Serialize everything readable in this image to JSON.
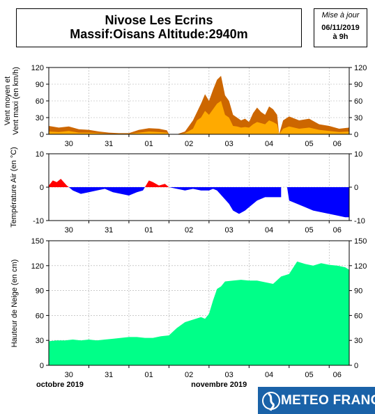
{
  "header": {
    "title_line1": "Nivose Les Ecrins",
    "title_line2": "Massif:Oisans Altitude:2940m",
    "update_label": "Mise à jour",
    "update_date": "06/11/2019",
    "update_time": "à 9h"
  },
  "logo": {
    "text": "METEO FRANCE"
  },
  "colors": {
    "wind_max": "#cc6600",
    "wind_mean": "#ffaa00",
    "temp_pos": "#ff0000",
    "temp_neg": "#0000ff",
    "snow": "#00ff88",
    "grid": "#aaaaaa",
    "logo_bg": "#1a62a8"
  },
  "chart_data": [
    {
      "type": "area",
      "ylabel": [
        "Vent moyen et",
        "Vent maxi (en km/h)"
      ],
      "ylim": [
        0,
        120
      ],
      "yticks": [
        0,
        30,
        60,
        90,
        120
      ],
      "day_labels": [
        "30",
        "31",
        "01",
        "02",
        "03",
        "04",
        "05",
        "06"
      ],
      "day_x": [
        0.5,
        1.5,
        2.5,
        3.5,
        4.5,
        5.5,
        6.5,
        7.2
      ],
      "grid": true,
      "series": [
        {
          "x": [
            0,
            0.25,
            0.5,
            0.75,
            1,
            1.25,
            1.5,
            1.75,
            2,
            2.25,
            2.5,
            2.75,
            2.95,
            3.0,
            3.2,
            3.4,
            3.6,
            3.7,
            3.8,
            3.9,
            4.0,
            4.1,
            4.2,
            4.3,
            4.4,
            4.5,
            4.6,
            4.7,
            4.8,
            4.9,
            5.0,
            5.1,
            5.2,
            5.3,
            5.4,
            5.5,
            5.6,
            5.7,
            5.75,
            5.85,
            6.0,
            6.25,
            6.5,
            6.75,
            7.0,
            7.25,
            7.5
          ],
          "values": [
            15,
            12,
            14,
            9,
            8,
            5,
            3,
            2,
            2,
            8,
            11,
            10,
            7,
            0,
            0,
            5,
            25,
            40,
            55,
            72,
            60,
            80,
            98,
            105,
            70,
            60,
            35,
            30,
            25,
            28,
            22,
            38,
            48,
            40,
            35,
            50,
            45,
            35,
            0,
            25,
            32,
            25,
            28,
            18,
            15,
            10,
            12
          ]
        },
        {
          "x": [
            0,
            0.25,
            0.5,
            0.75,
            1,
            1.25,
            1.5,
            1.75,
            2,
            2.25,
            2.5,
            2.75,
            2.95,
            3.0,
            3.2,
            3.4,
            3.6,
            3.7,
            3.8,
            3.9,
            4.0,
            4.1,
            4.2,
            4.3,
            4.4,
            4.5,
            4.6,
            4.7,
            4.8,
            4.9,
            5.0,
            5.1,
            5.2,
            5.3,
            5.4,
            5.5,
            5.6,
            5.7,
            5.75,
            5.85,
            6.0,
            6.25,
            6.5,
            6.75,
            7.0,
            7.25,
            7.5
          ],
          "values": [
            5,
            4,
            6,
            3,
            3,
            2,
            1,
            1,
            1,
            3,
            5,
            4,
            3,
            0,
            0,
            2,
            10,
            25,
            30,
            42,
            35,
            45,
            55,
            60,
            35,
            30,
            15,
            14,
            12,
            13,
            12,
            18,
            22,
            20,
            18,
            25,
            22,
            18,
            0,
            10,
            14,
            10,
            12,
            8,
            6,
            4,
            5
          ]
        }
      ]
    },
    {
      "type": "area",
      "ylabel": [
        "Température Air (en °C)"
      ],
      "ylim": [
        -10,
        10
      ],
      "yticks": [
        -10,
        0,
        10
      ],
      "day_labels": [
        "30",
        "31",
        "01",
        "02",
        "03",
        "04",
        "05",
        "06"
      ],
      "day_x": [
        0.5,
        1.5,
        2.5,
        3.5,
        4.5,
        5.5,
        6.5,
        7.2
      ],
      "grid": true,
      "series": [
        {
          "x": [
            0,
            0.1,
            0.2,
            0.3,
            0.45,
            0.6,
            0.8,
            1.0,
            1.2,
            1.4,
            1.6,
            1.8,
            2.0,
            2.2,
            2.35,
            2.5,
            2.6,
            2.75,
            2.9,
            3.0,
            3.2,
            3.4,
            3.6,
            3.8,
            4.0,
            4.1,
            4.2,
            4.35,
            4.5,
            4.6,
            4.75,
            4.9,
            5.0,
            5.2,
            5.4,
            5.6,
            5.8,
            5.8,
            5.95,
            6.0,
            6.2,
            6.4,
            6.6,
            6.8,
            7.0,
            7.2,
            7.4,
            7.5
          ],
          "values": [
            0.5,
            2,
            1.5,
            2.5,
            0.5,
            -1,
            -2,
            -1.5,
            -1,
            -0.5,
            -1.5,
            -2,
            -2.5,
            -1.5,
            -1,
            2,
            1.5,
            0.5,
            1,
            0,
            -0.5,
            -1,
            -0.5,
            -1,
            -1,
            -0.5,
            -1,
            -3,
            -5,
            -7,
            -8,
            -7,
            -6,
            -4,
            -3,
            -3,
            -3,
            0,
            0,
            -4,
            -5,
            -6,
            -7,
            -7.5,
            -8,
            -8.5,
            -9,
            -9
          ]
        }
      ]
    },
    {
      "type": "area",
      "ylabel": [
        "Hauteur de Neige (en cm)"
      ],
      "ylim": [
        0,
        150
      ],
      "yticks": [
        0,
        30,
        60,
        90,
        120,
        150
      ],
      "day_labels": [
        "30",
        "31",
        "01",
        "02",
        "03",
        "04",
        "05",
        "06"
      ],
      "day_x": [
        0.5,
        1.5,
        2.5,
        3.5,
        4.5,
        5.5,
        6.5,
        7.2
      ],
      "month_labels": [
        "octobre 2019",
        "novembre 2019"
      ],
      "grid": true,
      "series": [
        {
          "x": [
            0,
            0.2,
            0.4,
            0.6,
            0.8,
            1.0,
            1.2,
            1.4,
            1.6,
            1.8,
            2.0,
            2.2,
            2.4,
            2.6,
            2.8,
            3.0,
            3.2,
            3.4,
            3.6,
            3.8,
            3.9,
            4.0,
            4.1,
            4.2,
            4.3,
            4.4,
            4.6,
            4.8,
            5.0,
            5.2,
            5.4,
            5.6,
            5.8,
            6.0,
            6.2,
            6.4,
            6.6,
            6.8,
            7.0,
            7.2,
            7.4,
            7.5
          ],
          "values": [
            29,
            30,
            30,
            31,
            30,
            31,
            30,
            31,
            32,
            33,
            34,
            34,
            33,
            33,
            35,
            36,
            45,
            52,
            55,
            58,
            56,
            62,
            78,
            92,
            95,
            101,
            102,
            103,
            102,
            102,
            100,
            98,
            107,
            110,
            125,
            122,
            120,
            123,
            121,
            120,
            118,
            115
          ]
        }
      ]
    }
  ]
}
